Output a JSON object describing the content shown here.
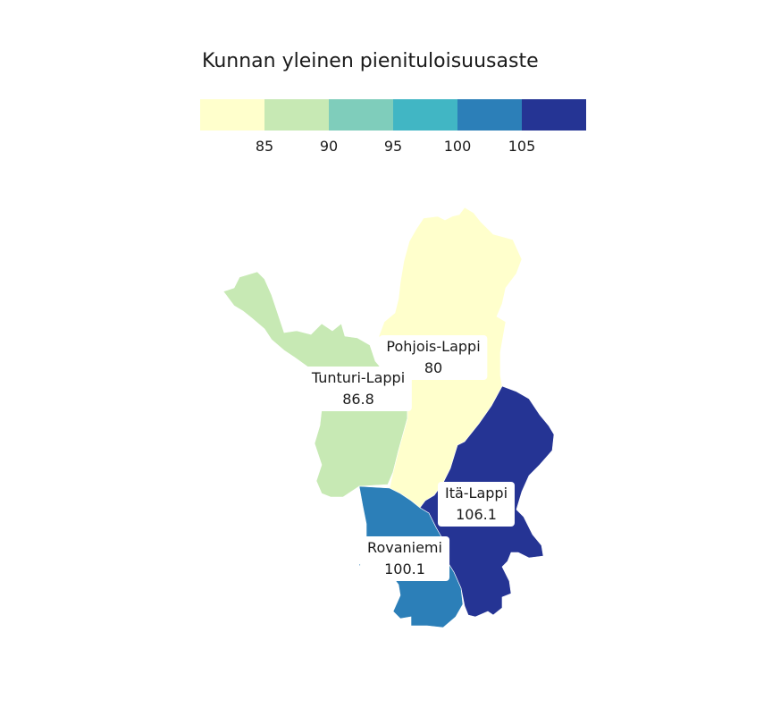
{
  "legend": {
    "title": "Kunnan yleinen pienituloisuusaste",
    "breaks": [
      "85",
      "90",
      "95",
      "100",
      "105"
    ],
    "colors": [
      "#ffffcc",
      "#c7e9b4",
      "#7fcdbb",
      "#41b6c4",
      "#2c7fb8",
      "#253494"
    ]
  },
  "regions": [
    {
      "name": "Pohjois-Lappi",
      "value": "80",
      "color": "#ffffcc"
    },
    {
      "name": "Tunturi-Lappi",
      "value": "86.8",
      "color": "#c7e9b4"
    },
    {
      "name": "Itä-Lappi",
      "value": "106.1",
      "color": "#253494"
    },
    {
      "name": "Rovaniemi",
      "value": "100.1",
      "color": "#2c7fb8"
    }
  ]
}
